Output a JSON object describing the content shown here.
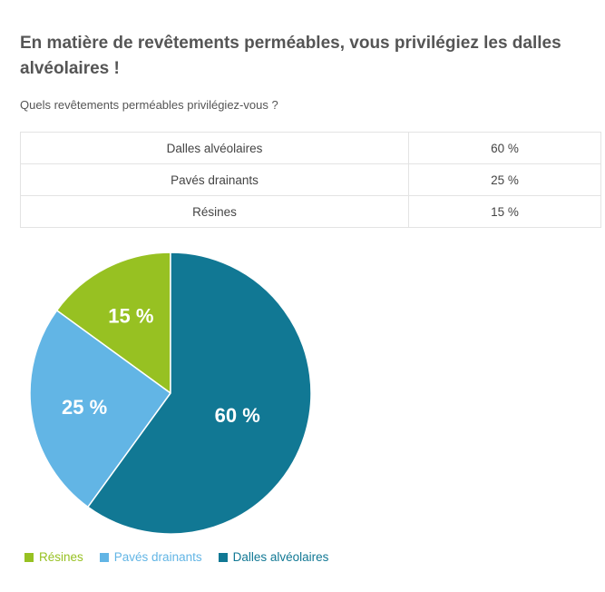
{
  "heading": "En matière de revêtements perméables, vous privilégiez les dalles alvéolaires !",
  "question": "Quels revêtements perméables privilégiez-vous ?",
  "table": {
    "rows": [
      {
        "label": "Dalles alvéolaires",
        "value": "60 %"
      },
      {
        "label": "Pavés drainants",
        "value": "25 %"
      },
      {
        "label": "Résines",
        "value": "15 %"
      }
    ]
  },
  "chart_data": {
    "type": "pie",
    "categories": [
      "Résines",
      "Pavés drainants",
      "Dalles alvéolaires"
    ],
    "values": [
      15,
      25,
      60
    ],
    "labels": [
      "15 %",
      "25 %",
      "60 %"
    ],
    "colors": [
      "#97c122",
      "#62b5e5",
      "#117894"
    ],
    "legend_position": "bottom-left"
  }
}
